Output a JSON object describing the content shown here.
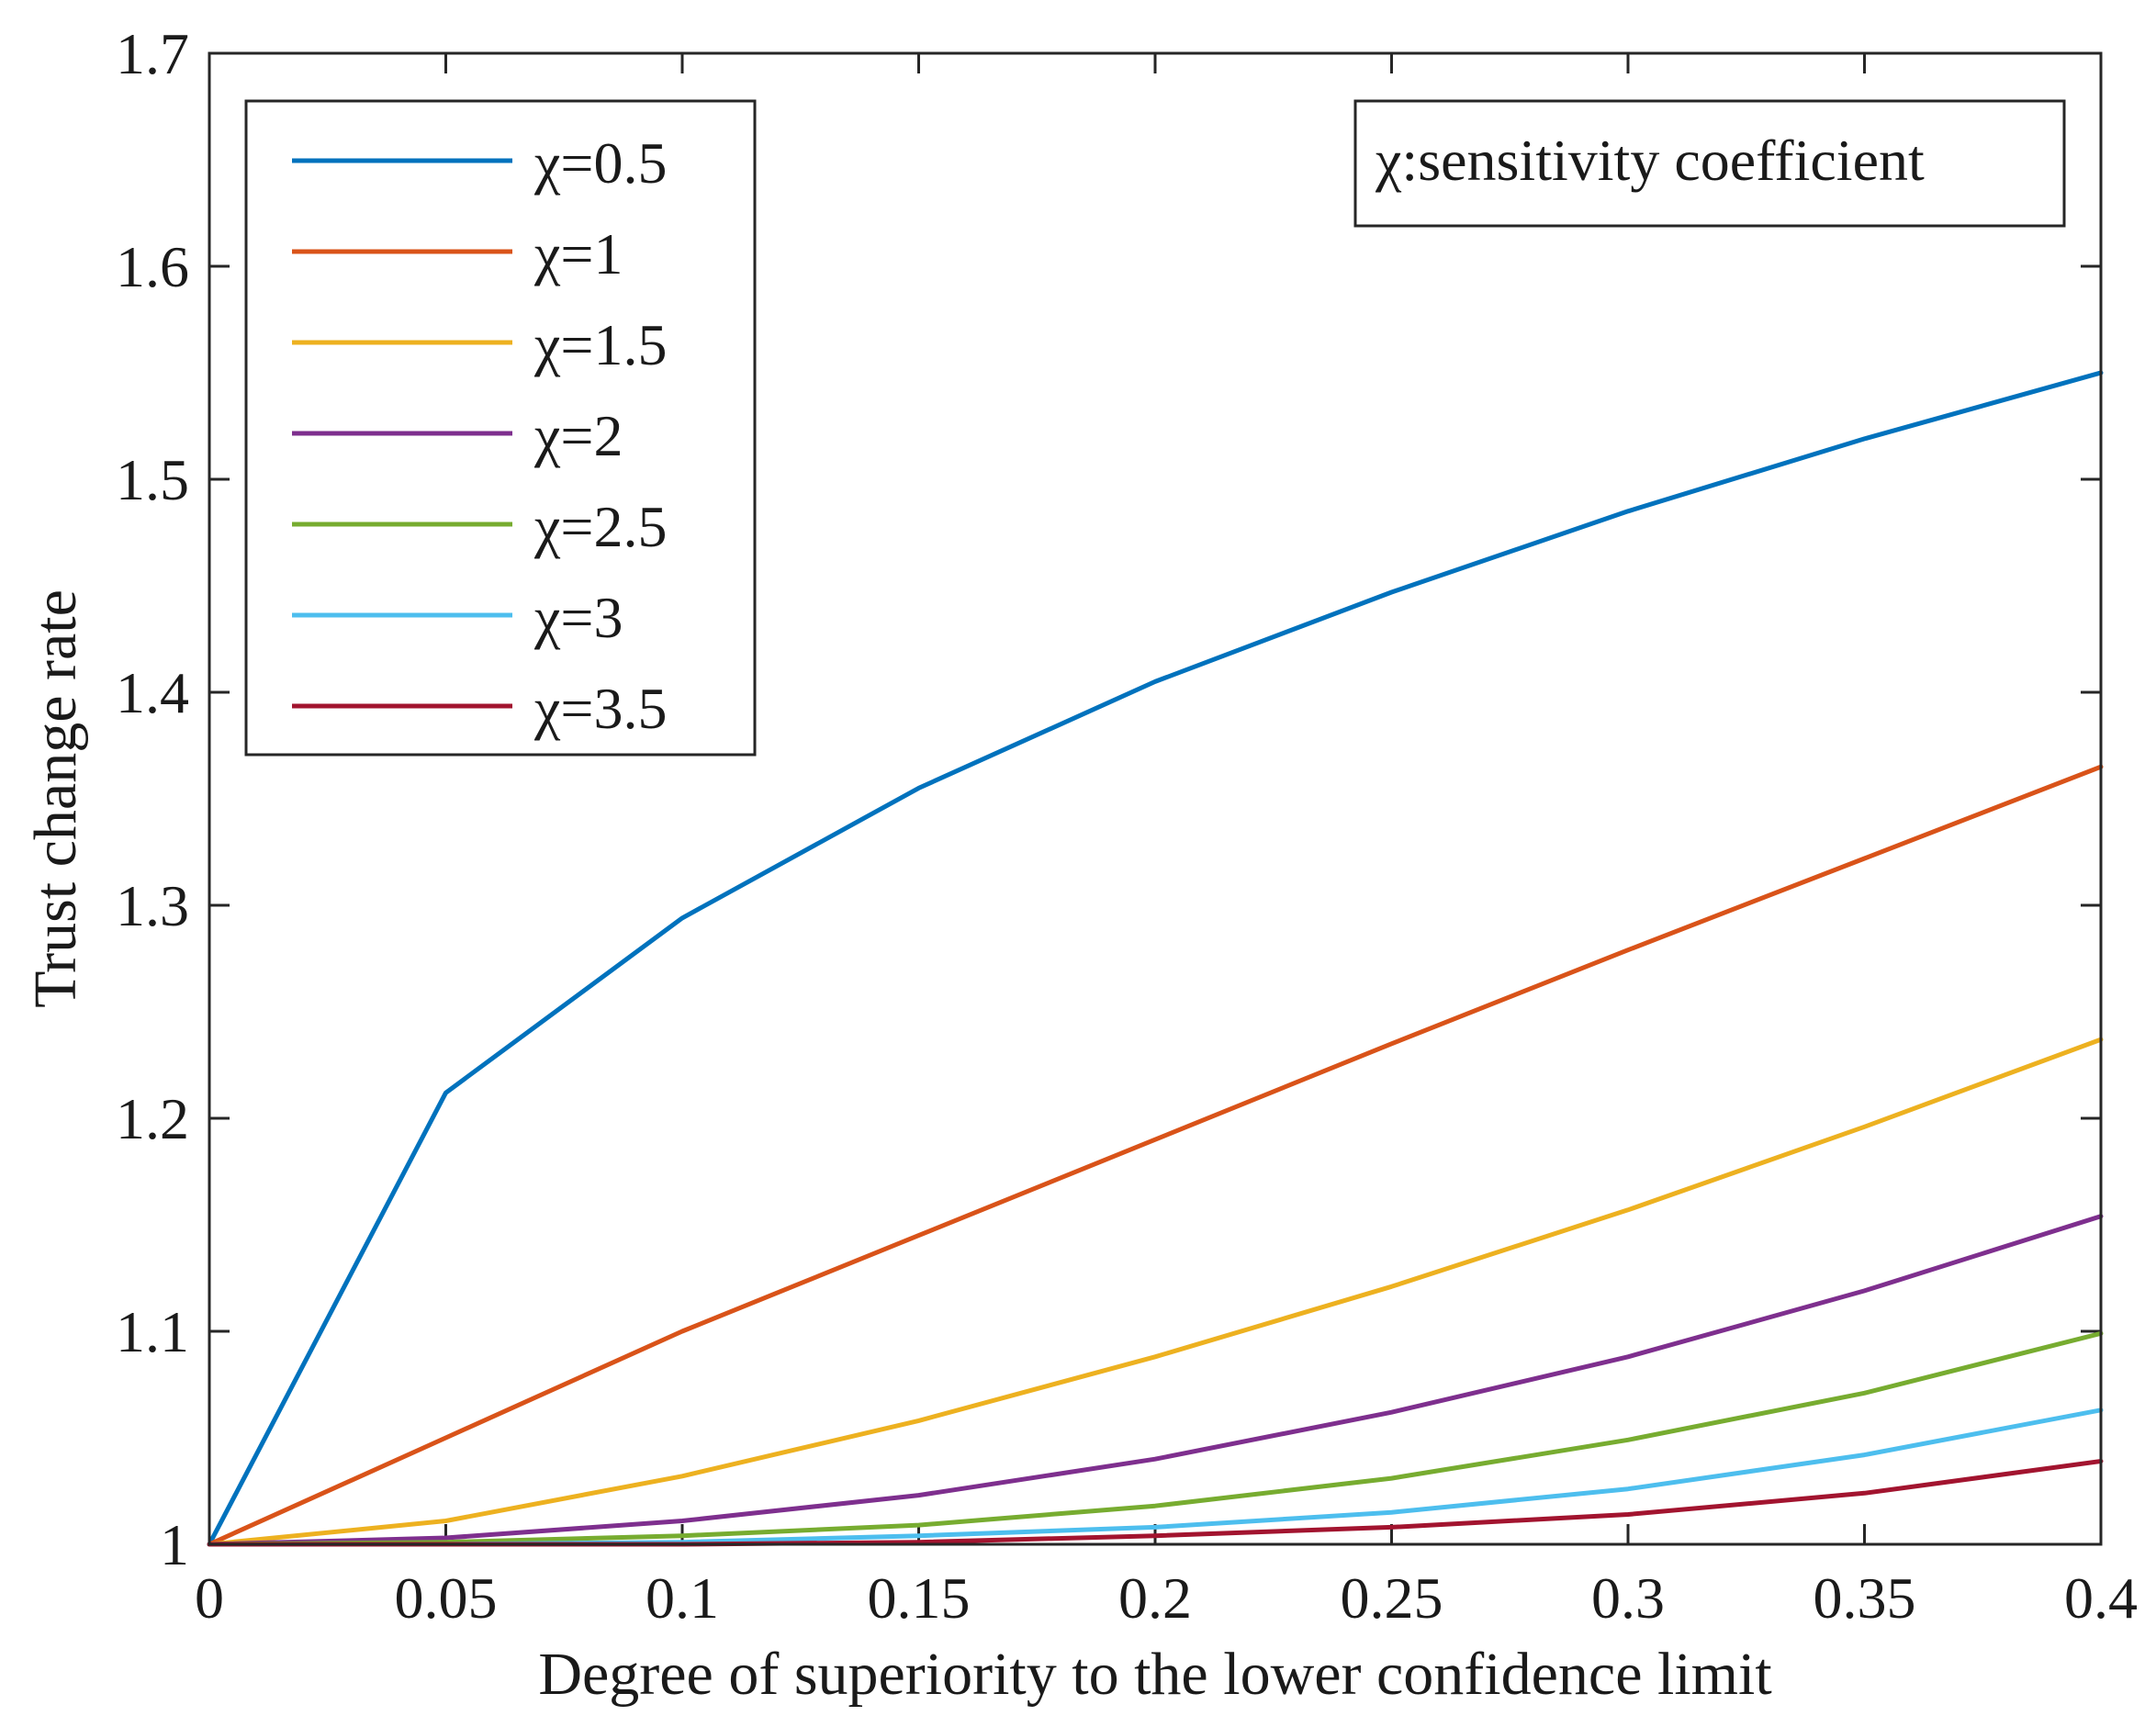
{
  "chart_data": {
    "type": "line",
    "title": "",
    "xlabel": "Degree of superiority to the lower confidence limit",
    "ylabel": "Trust change rate",
    "xlim": [
      0,
      0.4
    ],
    "ylim": [
      1,
      1.7
    ],
    "xticks": [
      0,
      0.05,
      0.1,
      0.15,
      0.2,
      0.25,
      0.3,
      0.35,
      0.4
    ],
    "xtick_labels": [
      "0",
      "0.05",
      "0.1",
      "0.15",
      "0.2",
      "0.25",
      "0.3",
      "0.35",
      "0.4"
    ],
    "yticks": [
      1,
      1.1,
      1.2,
      1.3,
      1.4,
      1.5,
      1.6,
      1.7
    ],
    "ytick_labels": [
      "1",
      "1.1",
      "1.2",
      "1.3",
      "1.4",
      "1.5",
      "1.6",
      "1.7"
    ],
    "grid": false,
    "legend_position": "top-left",
    "annotation": "χ:sensitivity coefficient",
    "x": [
      0,
      0.05,
      0.1,
      0.15,
      0.2,
      0.25,
      0.3,
      0.35,
      0.4
    ],
    "series": [
      {
        "name": "χ=0.5",
        "color": "#0072BD",
        "values": [
          1.0,
          1.212,
          1.294,
          1.355,
          1.405,
          1.447,
          1.485,
          1.519,
          1.55
        ]
      },
      {
        "name": "χ=1",
        "color": "#D95319",
        "values": [
          1.0,
          1.05,
          1.1,
          1.145,
          1.19,
          1.235,
          1.279,
          1.322,
          1.365
        ]
      },
      {
        "name": "χ=1.5",
        "color": "#EDB120",
        "values": [
          1.0,
          1.011,
          1.032,
          1.058,
          1.088,
          1.121,
          1.157,
          1.196,
          1.237
        ]
      },
      {
        "name": "χ=2",
        "color": "#7E2F8E",
        "values": [
          1.0,
          1.003,
          1.011,
          1.023,
          1.04,
          1.062,
          1.088,
          1.119,
          1.154
        ]
      },
      {
        "name": "χ=2.5",
        "color": "#77AC30",
        "values": [
          1.0,
          1.001,
          1.004,
          1.009,
          1.018,
          1.031,
          1.049,
          1.071,
          1.099
        ]
      },
      {
        "name": "χ=3",
        "color": "#4DBEEE",
        "values": [
          1.0,
          1.0,
          1.001,
          1.004,
          1.008,
          1.015,
          1.026,
          1.042,
          1.063
        ]
      },
      {
        "name": "χ=3.5",
        "color": "#A2142F",
        "values": [
          1.0,
          1.0,
          1.0,
          1.001,
          1.004,
          1.008,
          1.014,
          1.024,
          1.039
        ]
      }
    ]
  }
}
